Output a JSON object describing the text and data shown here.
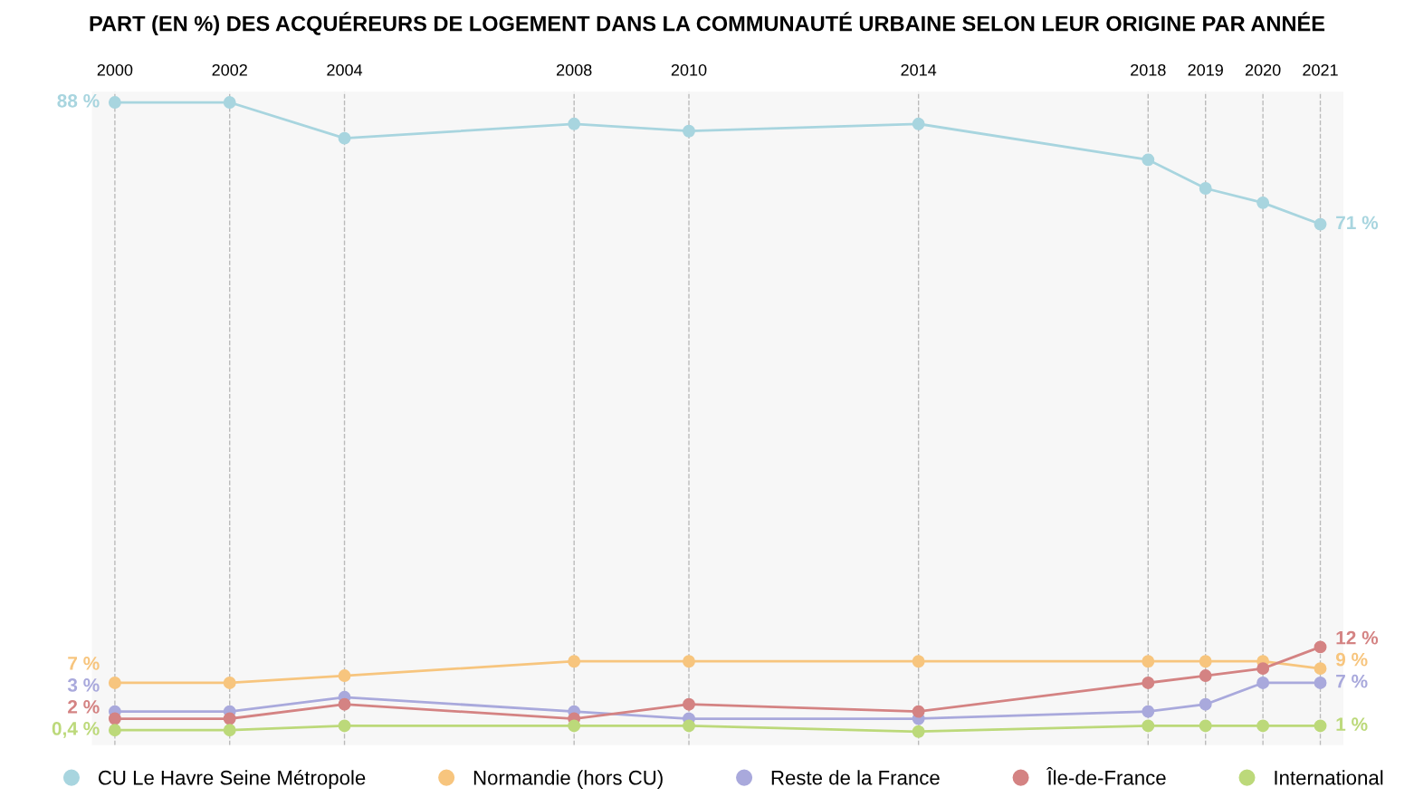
{
  "chart_data": {
    "type": "line",
    "title": "PART (EN %) DES ACQUÉREURS DE LOGEMENT DANS LA COMMUNAUTÉ URBAINE SELON LEUR ORIGINE PAR ANNÉE",
    "x": [
      2000,
      2002,
      2004,
      2008,
      2010,
      2014,
      2018,
      2019,
      2020,
      2021
    ],
    "xlim": [
      1999.6,
      2021.4
    ],
    "xticks": [
      2000,
      2002,
      2004,
      2008,
      2010,
      2014,
      2018,
      2019,
      2020,
      2021
    ],
    "ylim": [
      -1.7,
      89.5
    ],
    "tick_labels": "x",
    "grid": "x",
    "legend": "bottom",
    "marker": "circle",
    "line_style": "solid",
    "series": [
      {
        "name": "CU Le Havre Seine Métropole",
        "color": "#a8d5df",
        "values": [
          88,
          88,
          83,
          85,
          84,
          85,
          80,
          76,
          74,
          71
        ],
        "value_labels": [
          "88 %",
          null,
          null,
          null,
          null,
          null,
          null,
          null,
          null,
          "71 %"
        ]
      },
      {
        "name": "Normandie (hors CU)",
        "color": "#f7c57e",
        "values": [
          7,
          7,
          8,
          10,
          10,
          10,
          10,
          10,
          10,
          9
        ],
        "value_labels": [
          "7 %",
          null,
          null,
          null,
          null,
          null,
          null,
          null,
          null,
          "9 %"
        ]
      },
      {
        "name": "Reste de la France",
        "color": "#a9a9dc",
        "values": [
          3,
          3,
          5,
          3,
          2,
          2,
          3,
          4,
          7,
          7
        ],
        "value_labels": [
          "3 %",
          null,
          null,
          null,
          null,
          null,
          null,
          null,
          null,
          "7 %"
        ]
      },
      {
        "name": "Île-de-France",
        "color": "#d48383",
        "values": [
          2,
          2,
          4,
          2,
          4,
          3,
          7,
          8,
          9,
          12
        ],
        "value_labels": [
          "2 %",
          null,
          null,
          null,
          null,
          null,
          null,
          null,
          null,
          "12 %"
        ]
      },
      {
        "name": "International",
        "color": "#bcd97a",
        "values": [
          0.4,
          0.4,
          1,
          1,
          1,
          0.2,
          1,
          1,
          1,
          1
        ],
        "value_labels": [
          "0,4 %",
          null,
          null,
          null,
          null,
          null,
          null,
          null,
          null,
          "1 %"
        ]
      }
    ]
  }
}
